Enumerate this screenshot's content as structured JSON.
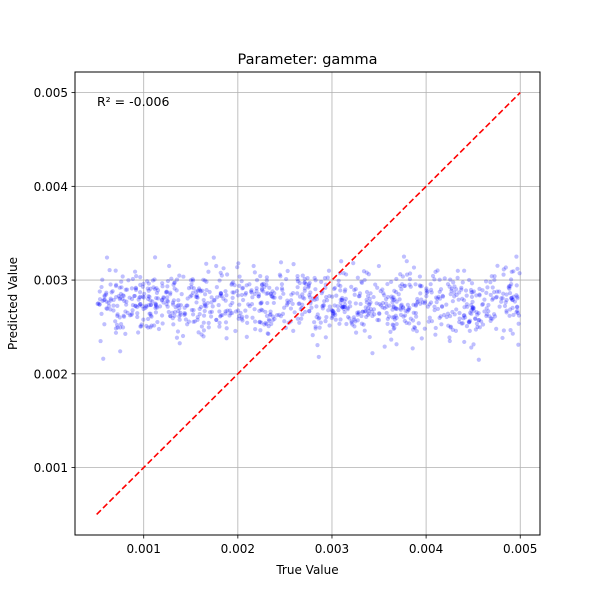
{
  "chart_data": {
    "type": "scatter",
    "title": "Parameter: gamma",
    "xlabel": "True Value",
    "ylabel": "Predicted Value",
    "xlim": [
      0.00027,
      0.00521
    ],
    "ylim": [
      0.00028,
      0.00522
    ],
    "xticks": [
      0.001,
      0.002,
      0.003,
      0.004,
      0.005
    ],
    "xtick_labels": [
      "0.001",
      "0.002",
      "0.003",
      "0.004",
      "0.005"
    ],
    "yticks": [
      0.001,
      0.002,
      0.003,
      0.004,
      0.005
    ],
    "ytick_labels": [
      "0.001",
      "0.002",
      "0.003",
      "0.004",
      "0.005"
    ],
    "grid": true,
    "annotation": "R² = -0.006",
    "series": [
      {
        "kind": "scatter",
        "color": "#0000ff",
        "opacity": 0.25,
        "x_range": [
          0.0005,
          0.005
        ],
        "count": 1000,
        "y_mean": 0.00275,
        "y_std": 0.00018,
        "y_range": [
          0.00215,
          0.00325
        ],
        "points": [
          [
            0.00061,
            0.00324
          ],
          [
            0.00075,
            0.00224
          ],
          [
            0.00127,
            0.00315
          ],
          [
            0.00177,
            0.00315
          ],
          [
            0.00286,
            0.00218
          ],
          [
            0.00343,
            0.00222
          ],
          [
            0.00356,
            0.00229
          ],
          [
            0.00448,
            0.00228
          ],
          [
            0.00456,
            0.00215
          ],
          [
            0.00498,
            0.00231
          ],
          [
            0.00497,
            0.00312
          ],
          [
            0.00251,
            0.00249
          ],
          [
            0.00315,
            0.00306
          ]
        ]
      },
      {
        "kind": "line",
        "color": "#ff0000",
        "style": "dashed",
        "x": [
          0.0005,
          0.005
        ],
        "y": [
          0.0005,
          0.005
        ]
      }
    ]
  }
}
